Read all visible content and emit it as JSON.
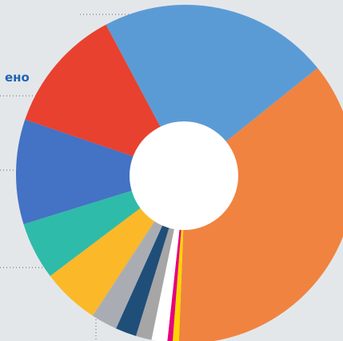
{
  "label": "ено",
  "chart_data": {
    "type": "donut",
    "start_angle": 332,
    "values": [
      22,
      36.4,
      0.6,
      0.5,
      1.5,
      1.5,
      2,
      2.5,
      5.5,
      5.5,
      10,
      12
    ],
    "colors": [
      "#5b9bd5",
      "#f08340",
      "#ffd400",
      "#e6007e",
      "#ffffff",
      "#a6a6a6",
      "#1f4e79",
      "#a9adb3",
      "#fbb829",
      "#2fbba9",
      "#4472c4",
      "#e8412f"
    ]
  }
}
